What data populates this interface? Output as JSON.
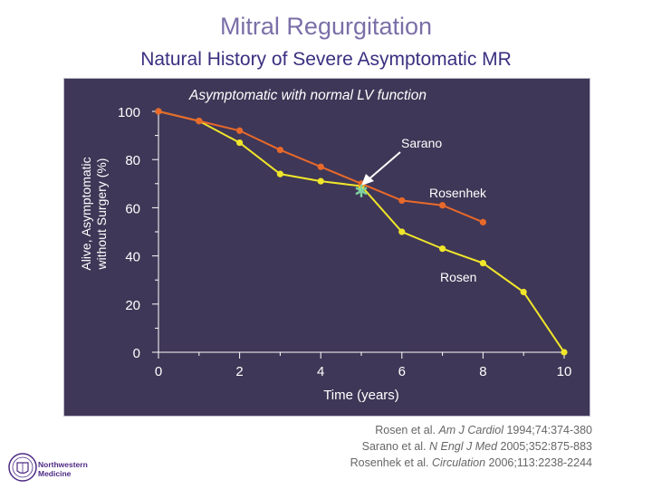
{
  "header": {
    "title": "Mitral Regurgitation",
    "subtitle": "Natural History of Severe Asymptomatic MR"
  },
  "chart_data": {
    "type": "line",
    "title": "Asymptomatic with normal LV function",
    "xlabel": "Time (years)",
    "ylabel": "Alive, Asymptomatic without Surgery (%)",
    "xlim": [
      0,
      10
    ],
    "ylim": [
      0,
      100
    ],
    "x_ticks": [
      "0",
      "2",
      "4",
      "6",
      "8",
      "10"
    ],
    "y_ticks": [
      "0",
      "20",
      "40",
      "60",
      "80",
      "100"
    ],
    "grid": false,
    "series": [
      {
        "name": "Sarano",
        "color": "#e8692a",
        "x": [
          0,
          1,
          2,
          3,
          4,
          5,
          6,
          7,
          8
        ],
        "y": [
          100,
          96,
          92,
          84,
          77,
          70,
          63,
          61,
          54
        ]
      },
      {
        "name": "Rosen",
        "color": "#f0e62a",
        "x": [
          0,
          1,
          2,
          3,
          4,
          5,
          6,
          7,
          8,
          9,
          10
        ],
        "y": [
          100,
          96,
          87,
          74,
          71,
          69,
          50,
          43,
          37,
          25,
          0
        ]
      }
    ],
    "annotations": [
      {
        "text": "Sarano",
        "position": "upper-right"
      },
      {
        "text": "Rosenhek",
        "position": "right-middle",
        "marker_x": 5,
        "marker_y": 67,
        "marker_color": "#7fd3a0"
      },
      {
        "text": "Rosen",
        "position": "right-lower"
      }
    ],
    "background": "#3f3757"
  },
  "citations": [
    {
      "authors": "Rosen et al. ",
      "journal": "Am J Cardiol",
      "rest": " 1994;74:374-380"
    },
    {
      "authors": "Sarano et al. ",
      "journal": "N Engl J Med",
      "rest": " 2005;352:875-883"
    },
    {
      "authors": "Rosenhek et al. ",
      "journal": "Circulation",
      "rest": " 2006;113:2238-2244"
    }
  ],
  "logo": {
    "line1": "Northwestern",
    "line2": "Medicine"
  }
}
